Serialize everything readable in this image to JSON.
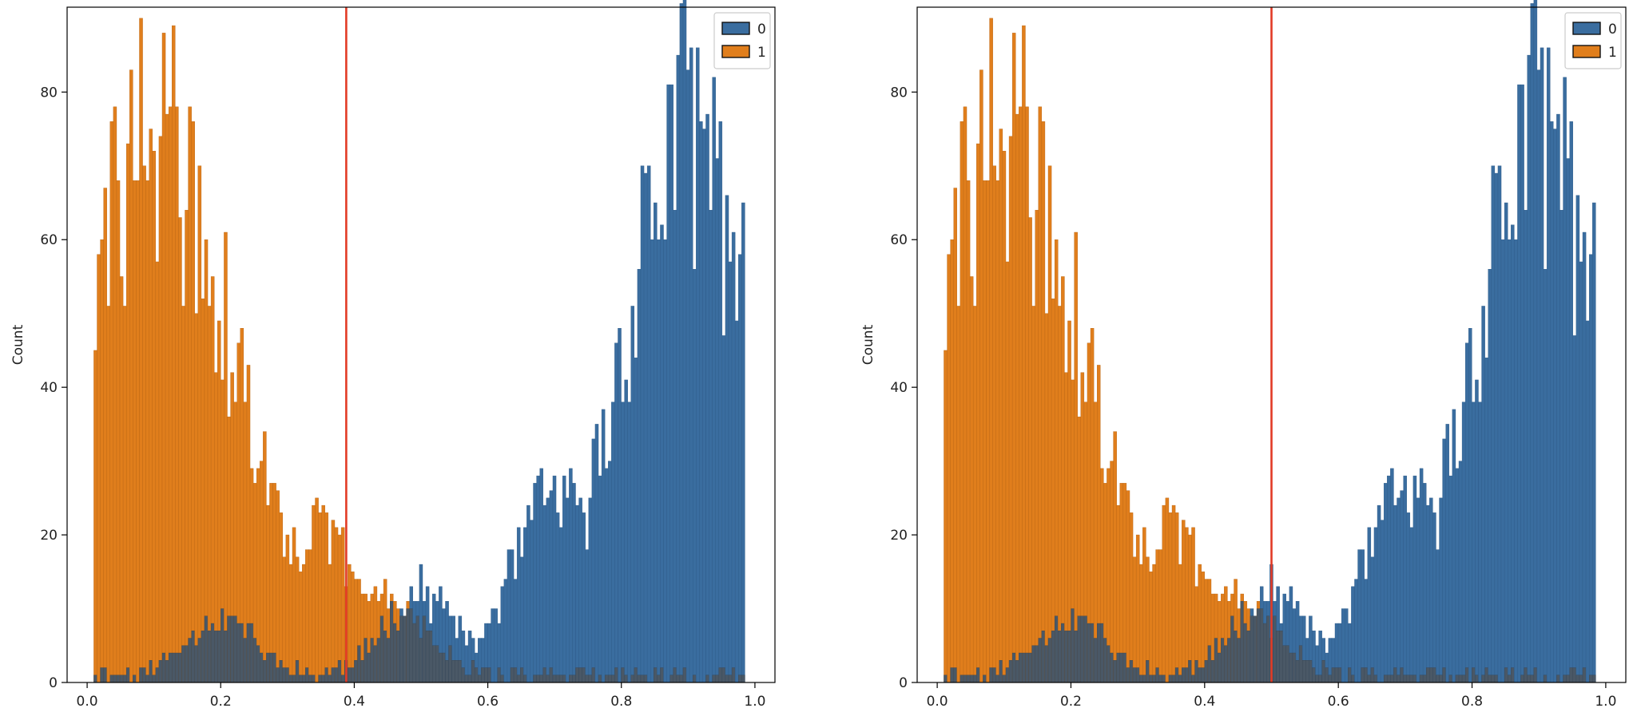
{
  "colors": {
    "class_0": "#3a6d9f",
    "class_0_edge": "#2c5a88",
    "class_1": "#e07e1c",
    "class_1_edge": "#b86412",
    "overlap": "#4a5866",
    "threshold_line": "#e23b26",
    "axis": "#000000",
    "background": "#ffffff"
  },
  "chart_data": [
    {
      "type": "histogram",
      "title": "",
      "xlabel": "",
      "ylabel": "Count",
      "xlim": [
        -0.03,
        1.03
      ],
      "ylim": [
        0,
        91.5
      ],
      "xticks": [
        "0.0",
        "0.2",
        "0.4",
        "0.6",
        "0.8",
        "1.0"
      ],
      "yticks": [
        "0",
        "20",
        "40",
        "60",
        "80"
      ],
      "grid": false,
      "legend": {
        "position": "top-right",
        "entries": [
          "0",
          "1"
        ]
      },
      "bins": 200,
      "bin_range": [
        0.01,
        0.985
      ],
      "series": [
        {
          "name": "0",
          "peaks": [
            {
              "center": 0.9,
              "height": 87
            },
            {
              "center": 0.82,
              "height": 45
            },
            {
              "center": 0.7,
              "height": 28
            },
            {
              "center": 0.5,
              "height": 13
            },
            {
              "center": 0.2,
              "height": 9
            }
          ]
        },
        {
          "name": "1",
          "peaks": [
            {
              "center": 0.1,
              "height": 87
            },
            {
              "center": 0.16,
              "height": 65
            },
            {
              "center": 0.25,
              "height": 33
            },
            {
              "center": 0.35,
              "height": 22
            },
            {
              "center": 0.45,
              "height": 13
            }
          ]
        }
      ],
      "threshold_x": 0.388
    },
    {
      "type": "histogram",
      "title": "",
      "xlabel": "",
      "ylabel": "Count",
      "xlim": [
        -0.03,
        1.03
      ],
      "ylim": [
        0,
        91.5
      ],
      "xticks": [
        "0.0",
        "0.2",
        "0.4",
        "0.6",
        "0.8",
        "1.0"
      ],
      "yticks": [
        "0",
        "20",
        "40",
        "60",
        "80"
      ],
      "grid": false,
      "legend": {
        "position": "top-right",
        "entries": [
          "0",
          "1"
        ]
      },
      "bins": 200,
      "bin_range": [
        0.01,
        0.985
      ],
      "series": [
        {
          "name": "0",
          "peaks": [
            {
              "center": 0.9,
              "height": 87
            },
            {
              "center": 0.82,
              "height": 45
            },
            {
              "center": 0.7,
              "height": 28
            },
            {
              "center": 0.5,
              "height": 13
            },
            {
              "center": 0.2,
              "height": 9
            }
          ]
        },
        {
          "name": "1",
          "peaks": [
            {
              "center": 0.1,
              "height": 87
            },
            {
              "center": 0.16,
              "height": 65
            },
            {
              "center": 0.25,
              "height": 33
            },
            {
              "center": 0.35,
              "height": 22
            },
            {
              "center": 0.45,
              "height": 13
            }
          ]
        }
      ],
      "threshold_x": 0.5
    }
  ]
}
